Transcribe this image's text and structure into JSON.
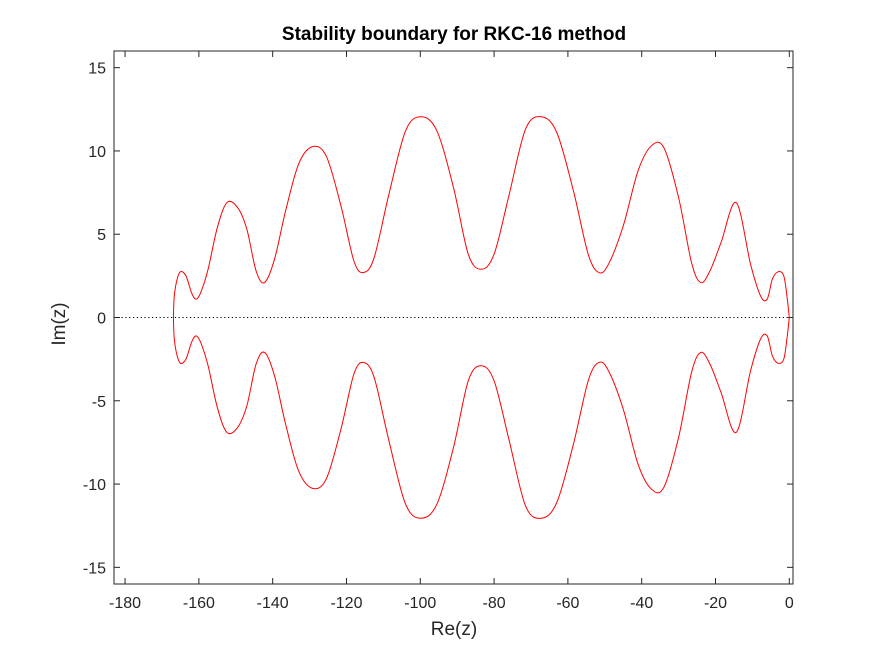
{
  "chart_data": {
    "type": "line",
    "title": "Stability boundary for RKC-16 method",
    "xlabel": "Re(z)",
    "ylabel": "Im(z)",
    "xlim": [
      -183,
      1
    ],
    "ylim": [
      -16,
      16
    ],
    "xticks": [
      -180,
      -160,
      -140,
      -120,
      -100,
      -80,
      -60,
      -40,
      -20,
      0
    ],
    "yticks": [
      -15,
      -10,
      -5,
      0,
      5,
      10,
      15
    ],
    "xtick_labels": [
      "-180",
      "-160",
      "-140",
      "-120",
      "-100",
      "-80",
      "-60",
      "-40",
      "-20",
      "0"
    ],
    "ytick_labels": [
      "-15",
      "-10",
      "-5",
      "0",
      "5",
      "10",
      "15"
    ],
    "grid": false,
    "reference_line": {
      "y": 0,
      "style": "dotted",
      "color": "#000000"
    },
    "series": [
      {
        "color": "#ff0000",
        "x": [
          0,
          -0.6,
          -1.5,
          -3.0,
          -4.6,
          -6.0,
          -7.8,
          -10.5,
          -14.4,
          -18.5,
          -21.5,
          -24.0,
          -26.5,
          -30.0,
          -34.0,
          -37.4,
          -41.0,
          -45.0,
          -49.0,
          -51.6,
          -54.5,
          -58.5,
          -63.0,
          -67.2,
          -71.5,
          -76.0,
          -80.0,
          -83.5,
          -87.0,
          -91.0,
          -95.5,
          -99.8,
          -104.0,
          -108.5,
          -112.5,
          -115.4,
          -118.0,
          -121.5,
          -125.5,
          -129.3,
          -133.0,
          -136.5,
          -139.5,
          -142.2,
          -144.5,
          -147.0,
          -149.5,
          -152.4,
          -155.0,
          -157.5,
          -159.5,
          -160.8,
          -162.0,
          -163.5,
          -165.0,
          -166.0,
          -166.7,
          -166.9
        ],
        "y": [
          0,
          1.2,
          2.5,
          2.75,
          2.3,
          1.1,
          1.3,
          3.2,
          6.9,
          4.5,
          2.8,
          2.1,
          3.3,
          7.2,
          10.2,
          10.3,
          8.8,
          5.5,
          3.2,
          2.7,
          3.8,
          7.6,
          11.1,
          12.05,
          11.3,
          7.3,
          3.8,
          2.9,
          3.8,
          7.8,
          11.2,
          12.05,
          11.2,
          7.4,
          3.6,
          2.7,
          3.4,
          6.7,
          9.7,
          10.25,
          9.2,
          6.4,
          3.5,
          2.1,
          2.8,
          5.3,
          6.6,
          6.9,
          5.4,
          2.9,
          1.5,
          1.1,
          1.5,
          2.5,
          2.75,
          2.2,
          1.2,
          0
        ]
      }
    ]
  }
}
